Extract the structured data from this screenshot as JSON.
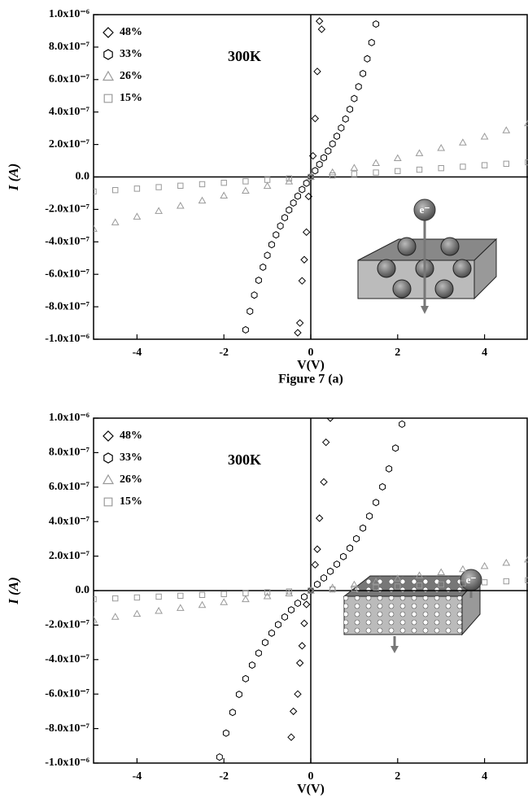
{
  "chart_data": [
    {
      "type": "scatter",
      "annotation": "300K",
      "xlabel": "V(V)",
      "ylabel": "I (A)",
      "caption": "Figure 7 (a)",
      "inset_label": "e⁻",
      "legend": "upper left",
      "xlim": [
        -5,
        5
      ],
      "ylim": [
        -1e-06,
        1e-06
      ],
      "xticks": [
        -4,
        -2,
        0,
        2,
        4
      ],
      "yticks": [
        {
          "value": -1e-06,
          "label": "-1.0x10⁻⁶"
        },
        {
          "value": -8e-07,
          "label": "-8.0x10⁻⁷"
        },
        {
          "value": -6e-07,
          "label": "-6.0x10⁻⁷"
        },
        {
          "value": -4e-07,
          "label": "-4.0x10⁻⁷"
        },
        {
          "value": -2e-07,
          "label": "-2.0x10⁻⁷"
        },
        {
          "value": 0,
          "label": "0.0"
        },
        {
          "value": 2e-07,
          "label": "2.0x10⁻⁷"
        },
        {
          "value": 4e-07,
          "label": "4.0x10⁻⁷"
        },
        {
          "value": 6e-07,
          "label": "6.0x10⁻⁷"
        },
        {
          "value": 8e-07,
          "label": "8.0x10⁻⁷"
        },
        {
          "value": 1e-06,
          "label": "1.0x10⁻⁶"
        }
      ],
      "series": [
        {
          "name": "48%",
          "marker": "diamond",
          "color": "#000000",
          "x": [
            -0.3,
            -0.25,
            -0.2,
            -0.15,
            -0.1,
            -0.05,
            0,
            0.05,
            0.1,
            0.15,
            0.2,
            0.25
          ],
          "values": [
            -9.6e-07,
            -9e-07,
            -6.4e-07,
            -5.1e-07,
            -3.4e-07,
            -1.2e-07,
            0,
            1.3e-07,
            3.6e-07,
            6.5e-07,
            9.6e-07,
            9.1e-07
          ]
        },
        {
          "name": "33%",
          "marker": "hexagon",
          "color": "#000000",
          "x": [
            -1.5,
            -1.4,
            -1.3,
            -1.2,
            -1.1,
            -1.0,
            -0.9,
            -0.8,
            -0.7,
            -0.6,
            -0.5,
            -0.4,
            -0.3,
            -0.2,
            -0.1,
            0,
            0.1,
            0.2,
            0.3,
            0.4,
            0.5,
            0.6,
            0.7,
            0.8,
            0.9,
            1.0,
            1.1,
            1.2,
            1.3,
            1.4,
            1.5
          ],
          "values": [
            -9.42e-07,
            -8.28e-07,
            -7.28e-07,
            -6.37e-07,
            -5.56e-07,
            -4.83e-07,
            -4.17e-07,
            -3.57e-07,
            -3.02e-07,
            -2.51e-07,
            -2.04e-07,
            -1.6e-07,
            -1.18e-07,
            -7.75e-08,
            -3.85e-08,
            0,
            3.85e-08,
            7.75e-08,
            1.18e-07,
            1.6e-07,
            2.04e-07,
            2.51e-07,
            3.02e-07,
            3.57e-07,
            4.17e-07,
            4.83e-07,
            5.56e-07,
            6.37e-07,
            7.28e-07,
            8.28e-07,
            9.42e-07
          ]
        },
        {
          "name": "26%",
          "marker": "triangle",
          "color": "#999999",
          "x": [
            -5,
            -4.5,
            -4,
            -3.5,
            -3,
            -2.5,
            -2,
            -1.5,
            -1,
            -0.5,
            0,
            0.5,
            1,
            1.5,
            2,
            2.5,
            3,
            3.5,
            4,
            4.5,
            5
          ],
          "values": [
            -3.2e-07,
            -2.8e-07,
            -2.45e-07,
            -2.1e-07,
            -1.78e-07,
            -1.46e-07,
            -1.15e-07,
            -8.5e-08,
            -5.6e-08,
            -2.8e-08,
            0,
            2.8e-08,
            5.6e-08,
            8.5e-08,
            1.15e-07,
            1.46e-07,
            1.78e-07,
            2.12e-07,
            2.48e-07,
            2.87e-07,
            3.3e-07
          ]
        },
        {
          "name": "15%",
          "marker": "square",
          "color": "#999999",
          "x": [
            -5,
            -4.5,
            -4,
            -3.5,
            -3,
            -2.5,
            -2,
            -1.5,
            -1,
            -0.5,
            0,
            0.5,
            1,
            1.5,
            2,
            2.5,
            3,
            3.5,
            4,
            4.5,
            5
          ],
          "values": [
            -9e-08,
            -8.1e-08,
            -7.2e-08,
            -6.3e-08,
            -5.4e-08,
            -4.5e-08,
            -3.6e-08,
            -2.7e-08,
            -1.8e-08,
            -9e-09,
            0,
            9e-09,
            1.8e-08,
            2.7e-08,
            3.6e-08,
            4.5e-08,
            5.4e-08,
            6.3e-08,
            7.2e-08,
            8.1e-08,
            9e-08
          ]
        }
      ]
    },
    {
      "type": "scatter",
      "annotation": "300K",
      "xlabel": "V(V)",
      "ylabel": "I (A)",
      "inset_label": "e⁻",
      "legend": "upper left",
      "xlim": [
        -5,
        5
      ],
      "ylim": [
        -1e-06,
        1e-06
      ],
      "xticks": [
        -4,
        -2,
        0,
        2,
        4
      ],
      "yticks": [
        {
          "value": -1e-06,
          "label": "-1.0x10⁻⁶"
        },
        {
          "value": -8e-07,
          "label": "-8.0x10⁻⁷"
        },
        {
          "value": -6e-07,
          "label": "-6.0x10⁻⁷"
        },
        {
          "value": -4e-07,
          "label": "-4.0x10⁻⁷"
        },
        {
          "value": -2e-07,
          "label": "-2.0x10⁻⁷"
        },
        {
          "value": 0,
          "label": "0.0"
        },
        {
          "value": 2e-07,
          "label": "2.0x10⁻⁷"
        },
        {
          "value": 4e-07,
          "label": "4.0x10⁻⁷"
        },
        {
          "value": 6e-07,
          "label": "6.0x10⁻⁷"
        },
        {
          "value": 8e-07,
          "label": "8.0x10⁻⁷"
        },
        {
          "value": 1e-06,
          "label": "1.0x10⁻⁶"
        }
      ],
      "series": [
        {
          "name": "48%",
          "marker": "diamond",
          "color": "#000000",
          "x": [
            -0.45,
            -0.4,
            -0.3,
            -0.25,
            -0.2,
            -0.15,
            -0.1,
            0,
            0.1,
            0.15,
            0.2,
            0.3,
            0.35,
            0.45
          ],
          "values": [
            -8.5e-07,
            -7e-07,
            -6e-07,
            -4.2e-07,
            -3.2e-07,
            -1.9e-07,
            -8e-08,
            0,
            1.5e-07,
            2.4e-07,
            4.2e-07,
            6.3e-07,
            8.6e-07,
            1e-06
          ]
        },
        {
          "name": "33%",
          "marker": "hexagon",
          "color": "#000000",
          "x": [
            -2.1,
            -1.95,
            -1.8,
            -1.65,
            -1.5,
            -1.35,
            -1.2,
            -1.05,
            -0.9,
            -0.75,
            -0.6,
            -0.45,
            -0.3,
            -0.15,
            0,
            0.15,
            0.3,
            0.45,
            0.6,
            0.75,
            0.9,
            1.05,
            1.2,
            1.35,
            1.5,
            1.65,
            1.8,
            1.95,
            2.1
          ],
          "values": [
            -9.652e-07,
            -8.264e-07,
            -7.061e-07,
            -6.018e-07,
            -5.11e-07,
            -4.318e-07,
            -3.623e-07,
            -3.009e-07,
            -2.464e-07,
            -1.974e-07,
            -1.528e-07,
            -1.117e-07,
            -7.31e-08,
            -3.61e-08,
            0,
            3.61e-08,
            7.31e-08,
            1.117e-07,
            1.528e-07,
            1.974e-07,
            2.464e-07,
            3.009e-07,
            3.623e-07,
            4.318e-07,
            5.11e-07,
            6.018e-07,
            7.061e-07,
            8.264e-07,
            9.652e-07
          ]
        },
        {
          "name": "26%",
          "marker": "triangle",
          "color": "#999999",
          "x": [
            -5,
            -4.5,
            -4,
            -3.5,
            -3,
            -2.5,
            -2,
            -1.5,
            -1,
            -0.5,
            0,
            0.5,
            1,
            1.5,
            2,
            2.5,
            3,
            3.5,
            4,
            4.5,
            5
          ],
          "values": [
            -1.7e-07,
            -1.52e-07,
            -1.35e-07,
            -1.18e-07,
            -1.01e-07,
            -8.4e-08,
            -6.7e-08,
            -5e-08,
            -3.3e-08,
            -1.65e-08,
            0,
            1.7e-08,
            3.4e-08,
            5.2e-08,
            7e-08,
            8.8e-08,
            1.06e-07,
            1.24e-07,
            1.42e-07,
            1.61e-07,
            1.8e-07
          ]
        },
        {
          "name": "15%",
          "marker": "square",
          "color": "#999999",
          "x": [
            -5,
            -4.5,
            -4,
            -3.5,
            -3,
            -2.5,
            -2,
            -1.5,
            -1,
            -0.5,
            0,
            0.5,
            1,
            1.5,
            2,
            2.5,
            3,
            3.5,
            4,
            4.5,
            5
          ],
          "values": [
            -5e-08,
            -4.5e-08,
            -4e-08,
            -3.5e-08,
            -3e-08,
            -2.5e-08,
            -2e-08,
            -1.5e-08,
            -1e-08,
            -5e-09,
            0,
            6e-09,
            1.2e-08,
            1.8e-08,
            2.4e-08,
            3e-08,
            3.6e-08,
            4.2e-08,
            4.8e-08,
            5.4e-08,
            6e-08
          ]
        }
      ]
    }
  ]
}
